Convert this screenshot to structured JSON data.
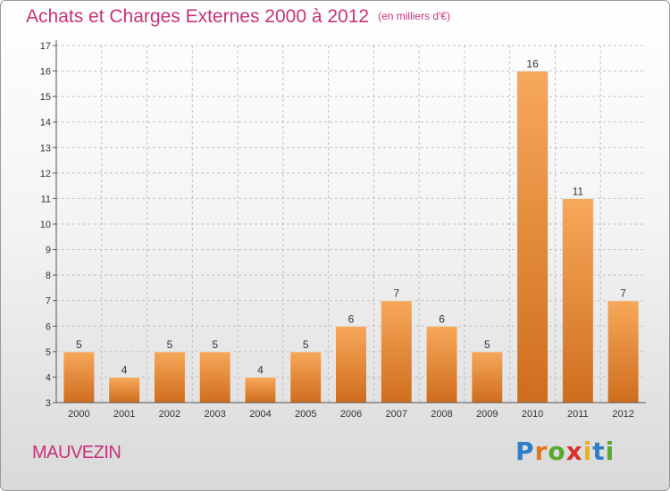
{
  "title": "Achats et Charges Externes 2000 à 2012",
  "unit": "(en milliers d'€)",
  "commune": "MAUVEZIN",
  "logo": {
    "text": "Proxiti",
    "letters": [
      "P",
      "r",
      "o",
      "x",
      "i",
      "t",
      "i"
    ]
  },
  "colors": {
    "title": "#c8327a",
    "bar_light": "#f7a85a",
    "bar_dark": "#cf6d1e",
    "axis": "#555555",
    "grid": "#c0c0c0"
  },
  "chart_data": {
    "type": "bar",
    "title": "Achats et Charges Externes 2000 à 2012",
    "xlabel": "",
    "ylabel": "",
    "categories": [
      "2000",
      "2001",
      "2002",
      "2003",
      "2004",
      "2005",
      "2006",
      "2007",
      "2008",
      "2009",
      "2010",
      "2011",
      "2012"
    ],
    "values": [
      5,
      4,
      5,
      5,
      4,
      5,
      6,
      7,
      6,
      5,
      16,
      11,
      7
    ],
    "ylim": [
      3,
      17
    ],
    "yticks": [
      3,
      4,
      5,
      6,
      7,
      8,
      9,
      10,
      11,
      12,
      13,
      14,
      15,
      16,
      17
    ],
    "grid": true,
    "data_labels": true
  }
}
